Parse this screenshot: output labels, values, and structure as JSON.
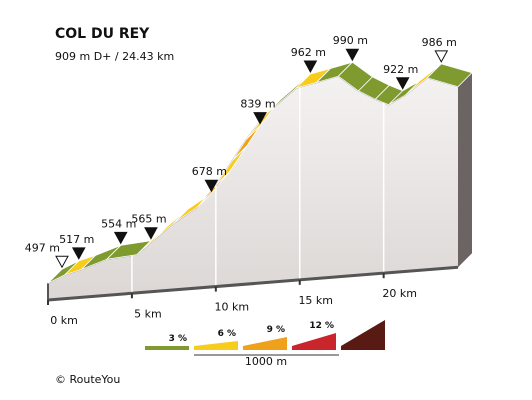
{
  "chart_data": {
    "type": "elevation-profile",
    "title": "COL DU REY",
    "subtitle": "909 m D+ / 24.43 km",
    "credit": "© RouteYou",
    "profile": {
      "x": [
        0,
        1.0,
        2.0,
        3.5,
        5.3,
        6.3,
        7.5,
        8.9,
        10.0,
        11.0,
        11.8,
        13.0,
        14.8,
        16.0,
        17.3,
        18.5,
        19.5,
        20.3,
        21.3,
        22.6,
        24.43
      ],
      "values": [
        497,
        517,
        530,
        554,
        565,
        600,
        640,
        678,
        730,
        790,
        839,
        900,
        962,
        975,
        990,
        955,
        935,
        922,
        945,
        986,
        965
      ],
      "grades": [
        0,
        1,
        0,
        0,
        1,
        1,
        1,
        2,
        1,
        2,
        1,
        0,
        1,
        0,
        0,
        0,
        0,
        0,
        1,
        0
      ]
    },
    "markers": {
      "x": [
        0,
        1.0,
        3.5,
        5.3,
        8.9,
        11.8,
        14.8,
        17.3,
        20.3,
        22.6
      ],
      "values": [
        497,
        517,
        554,
        565,
        678,
        839,
        962,
        990,
        922,
        986
      ],
      "value_labels": [
        "497 m",
        "517 m",
        "554 m",
        "565 m",
        "678 m",
        "839 m",
        "962 m",
        "990 m",
        "922 m",
        "986 m"
      ],
      "hollow": [
        true,
        false,
        false,
        false,
        false,
        false,
        false,
        false,
        false,
        true
      ]
    },
    "xlim": [
      0,
      24.43
    ],
    "ylim": [
      400,
      1000
    ],
    "xticks": [
      {
        "value": 0,
        "label": "0 km"
      },
      {
        "value": 5,
        "label": "5 km"
      },
      {
        "value": 10,
        "label": "10 km"
      },
      {
        "value": 15,
        "label": "15 km"
      },
      {
        "value": 20,
        "label": "20 km"
      }
    ],
    "legend": {
      "names": [
        "3 %",
        "6 %",
        "9 %",
        "12 %",
        null
      ],
      "colors": [
        "#7f9a2e",
        "#f8cc1b",
        "#efa11c",
        "#c9252c",
        "#5a1a14"
      ],
      "scale_label": "1000 m"
    }
  }
}
